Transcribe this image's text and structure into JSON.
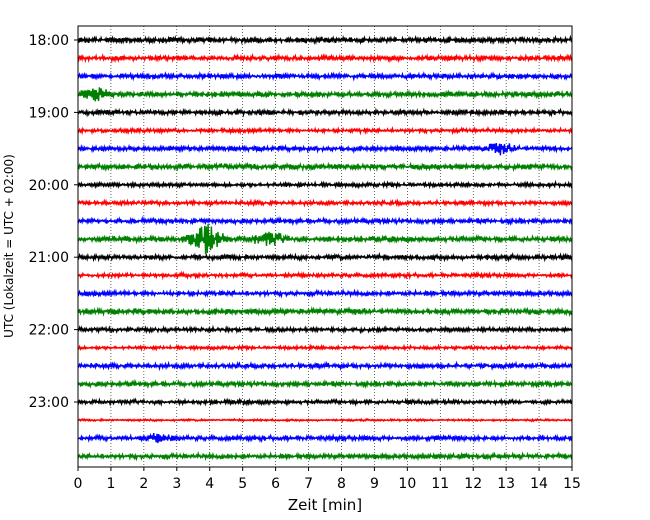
{
  "chart_data": {
    "type": "line",
    "chart_kind": "helicorder (seismogram drum plot)",
    "xlabel": "Zeit  [min]",
    "ylabel": "UTC (Lokalzeit = UTC + 02:00)",
    "xlim": [
      0,
      15
    ],
    "x_ticks": [
      0,
      1,
      2,
      3,
      4,
      5,
      6,
      7,
      8,
      9,
      10,
      11,
      12,
      13,
      14,
      15
    ],
    "x_tick_labels": [
      "0",
      "1",
      "2",
      "3",
      "4",
      "5",
      "6",
      "7",
      "8",
      "9",
      "10",
      "11",
      "12",
      "13",
      "14",
      "15"
    ],
    "x_grid": "dotted vertical lines at each minute",
    "y_tick_labels": [
      "18:00",
      "19:00",
      "20:00",
      "21:00",
      "22:00",
      "23:00"
    ],
    "trace_interval_minutes": 15,
    "trace_colors_cycle": [
      "#000000",
      "#ff0000",
      "#0000ff",
      "#008000"
    ],
    "traces": [
      {
        "start": "18:00",
        "amplitude": 0.35
      },
      {
        "start": "18:15",
        "amplitude": 0.3
      },
      {
        "start": "18:30",
        "amplitude": 0.3
      },
      {
        "start": "18:45",
        "amplitude": 0.35,
        "events": [
          {
            "min": 0.5,
            "amp": 0.6
          }
        ]
      },
      {
        "start": "19:00",
        "amplitude": 0.3
      },
      {
        "start": "19:15",
        "amplitude": 0.25
      },
      {
        "start": "19:30",
        "amplitude": 0.3,
        "events": [
          {
            "min": 12.8,
            "amp": 0.5
          }
        ]
      },
      {
        "start": "19:45",
        "amplitude": 0.35
      },
      {
        "start": "20:00",
        "amplitude": 0.25
      },
      {
        "start": "20:15",
        "amplitude": 0.25
      },
      {
        "start": "20:30",
        "amplitude": 0.3
      },
      {
        "start": "20:45",
        "amplitude": 0.35,
        "events": [
          {
            "min": 3.9,
            "amp": 1.7
          },
          {
            "min": 5.8,
            "amp": 0.7
          }
        ]
      },
      {
        "start": "21:00",
        "amplitude": 0.3
      },
      {
        "start": "21:15",
        "amplitude": 0.25
      },
      {
        "start": "21:30",
        "amplitude": 0.3
      },
      {
        "start": "21:45",
        "amplitude": 0.35
      },
      {
        "start": "22:00",
        "amplitude": 0.25
      },
      {
        "start": "22:15",
        "amplitude": 0.2
      },
      {
        "start": "22:30",
        "amplitude": 0.3
      },
      {
        "start": "22:45",
        "amplitude": 0.3
      },
      {
        "start": "23:00",
        "amplitude": 0.25
      },
      {
        "start": "23:15",
        "amplitude": 0.12
      },
      {
        "start": "23:30",
        "amplitude": 0.3,
        "events": [
          {
            "min": 2.5,
            "amp": 0.4
          }
        ]
      },
      {
        "start": "23:45",
        "amplitude": 0.3
      }
    ]
  }
}
